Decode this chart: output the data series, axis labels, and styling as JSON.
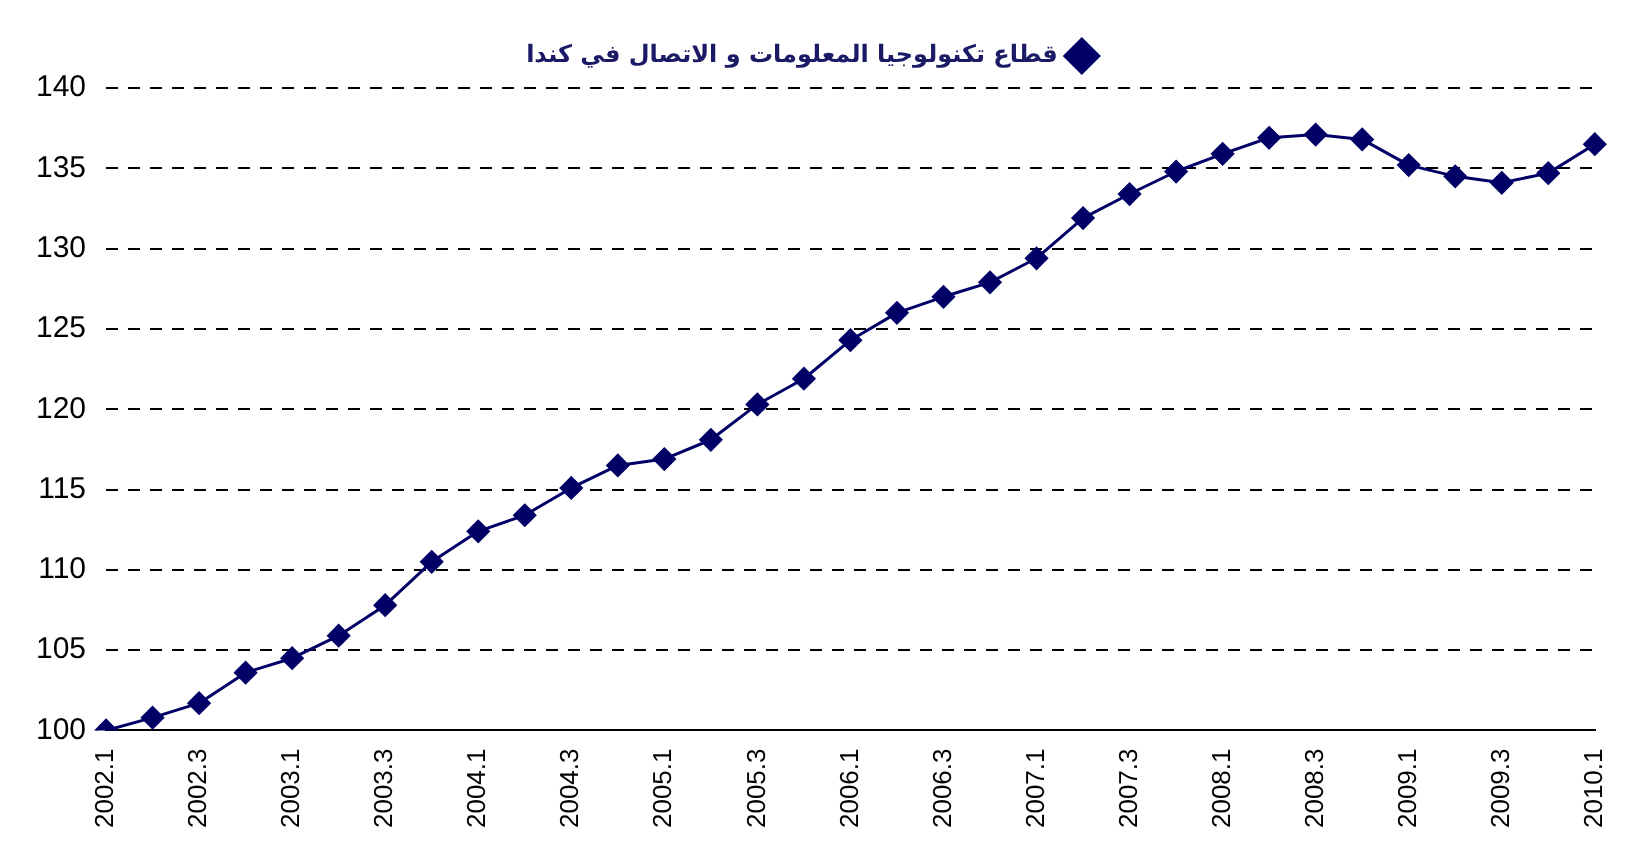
{
  "chart_data": {
    "type": "line",
    "categories": [
      "2002.1",
      null,
      "2002.3",
      null,
      "2003.1",
      null,
      "2003.3",
      null,
      "2004.1",
      null,
      "2004.3",
      null,
      "2005.1",
      null,
      "2005.3",
      null,
      "2006.1",
      null,
      "2006.3",
      null,
      "2007.1",
      null,
      "2007.3",
      null,
      "2008.1",
      null,
      "2008.3",
      null,
      "2009.1",
      null,
      "2009.3",
      null,
      "2010.1"
    ],
    "series": [
      {
        "name": "قطاع تكنولوجيا المعلومات و الاتصال في كندا",
        "color": "#000066",
        "values": [
          100,
          100.8,
          101.7,
          103.6,
          104.5,
          105.9,
          107.8,
          110.5,
          112.4,
          113.4,
          115.1,
          116.5,
          116.9,
          118.1,
          120.3,
          121.9,
          124.3,
          126.0,
          127.0,
          127.9,
          129.4,
          131.9,
          133.4,
          134.8,
          135.9,
          136.9,
          137.1,
          136.8,
          135.2,
          134.5,
          134.1,
          134.7,
          136.5
        ]
      }
    ],
    "ylim": [
      100,
      140
    ],
    "yticks": [
      100,
      105,
      110,
      115,
      120,
      125,
      130,
      135,
      140
    ],
    "grid": "y",
    "legend": "top",
    "marker": "diamond",
    "line_style": "solid"
  }
}
